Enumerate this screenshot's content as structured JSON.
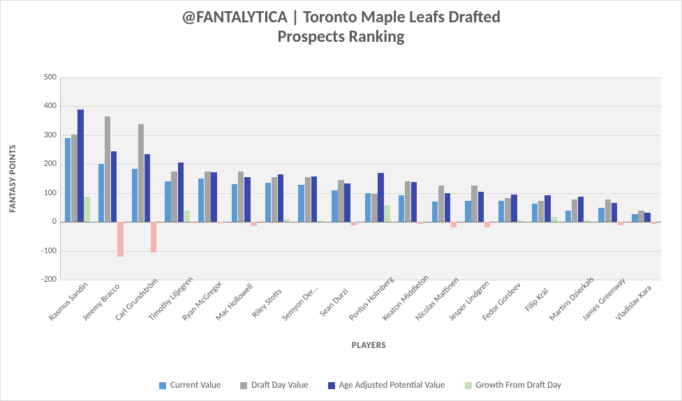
{
  "chart": {
    "type": "bar",
    "title_line1": "@FANTALYTICA | Toronto Maple Leafs Drafted",
    "title_line2": "Prospects Ranking",
    "title_fontsize": 24,
    "ylabel": "FANTASY POINTS",
    "xlabel": "PLAYERS",
    "label_fontsize": 13,
    "background_color": "#ffffff",
    "plot_background_color": "#f2f2f2",
    "grid_color": "#d9d9d9",
    "axis_color": "#bfbfbf",
    "ylim": [
      -200,
      500
    ],
    "ytick_step": 100,
    "series": [
      {
        "name": "Current Value",
        "color": "#5b9bd5"
      },
      {
        "name": "Draft Day Value",
        "color": "#a5a5a5"
      },
      {
        "name": "Age Adjusted Potential Value",
        "color": "#3949ab"
      },
      {
        "name": "Growth From Draft Day",
        "color": "#c5e0b4",
        "negative_color": "#f4b5b1"
      }
    ],
    "categories": [
      "Rasmus Sandin",
      "Jeremy Bracco",
      "Carl Grundström",
      "Timothy Liljegren",
      "Ryan McGregor",
      "Mac Hollowell",
      "Riley Stotts",
      "Semyon Der…",
      "Sean Durzi",
      "Pontus Holmberg",
      "Keaton Middleton",
      "Nicolas Mattinen",
      "Jesper Lindgren",
      "Fedor Gordeev",
      "Filip Král",
      "Martins Dzierkals",
      "James Greenway",
      "Vladislav Kara"
    ],
    "data": {
      "Current Value": [
        290,
        200,
        185,
        140,
        150,
        130,
        135,
        128,
        110,
        100,
        92,
        70,
        72,
        72,
        62,
        40,
        48,
        28
      ],
      "Draft Day Value": [
        302,
        365,
        338,
        175,
        175,
        175,
        155,
        155,
        145,
        98,
        140,
        125,
        125,
        82,
        72,
        78,
        78,
        38
      ],
      "Age Adjusted Potential Value": [
        390,
        245,
        235,
        205,
        172,
        155,
        165,
        158,
        132,
        170,
        138,
        100,
        105,
        95,
        92,
        88,
        65,
        32
      ],
      "Growth From Draft Day": [
        88,
        -120,
        -105,
        38,
        -5,
        -15,
        10,
        5,
        -12,
        58,
        -8,
        -20,
        -18,
        6,
        18,
        5,
        -12,
        -8
      ]
    },
    "bar_group_gap": 0.25,
    "bar_gap": 0.02
  }
}
